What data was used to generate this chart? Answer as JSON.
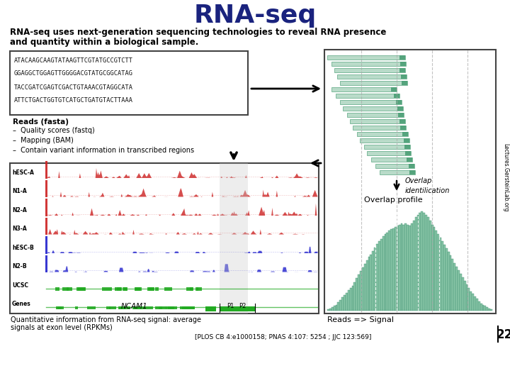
{
  "title": "RNA-seq",
  "subtitle_line1": "RNA-seq uses next-generation sequencing technologies to reveal RNA presence",
  "subtitle_line2": "and quantity within a biological sample.",
  "dna_seq_lines": [
    "ATACAAGCAAGTATAAGTTCGTATGCCGTCTT",
    "GGAGGCTGGAGTTGGGGACGTATGCGGCATAG",
    "TACCGATCGAGTCGACTGTAAACGTAGGCATA",
    "ATTCTGACTGGTGTCATGCTGATGTACTTAAA"
  ],
  "reads_text": [
    "Reads (fasta)",
    "–  Quality scores (fastq)",
    "–  Mapping (BAM)",
    "–  Contain variant information in transcribed regions"
  ],
  "bottom_left_caption_line1": "Quantitative information from RNA-seq signal: average",
  "bottom_left_caption_line2": "signals at exon level (RPKMs)",
  "bottom_right_caption": "Reads => Signal",
  "citation": "[PLOS CB 4:e1000158; PNAS 4:107: 5254 ; JJC 123:569]",
  "overlap_id_text": "Overlap\nidentilication",
  "overlap_profile_text": "Overlap profile",
  "sidebar_text": "Lectures.GersteinLab.org",
  "slide_number": "22",
  "bg_color": "#ffffff",
  "title_color": "#1a237e",
  "read_bar_color": "#7bbf9e",
  "track_labels": [
    "hESC-A",
    "N1-A",
    "N2-A",
    "N3-A",
    "hESC-B",
    "N2-B",
    "UCSC",
    "Genes"
  ],
  "track_colors": [
    "#cc2222",
    "#cc2222",
    "#cc2222",
    "#cc2222",
    "#2222cc",
    "#2222cc",
    "#22aa22",
    "#22aa22"
  ]
}
